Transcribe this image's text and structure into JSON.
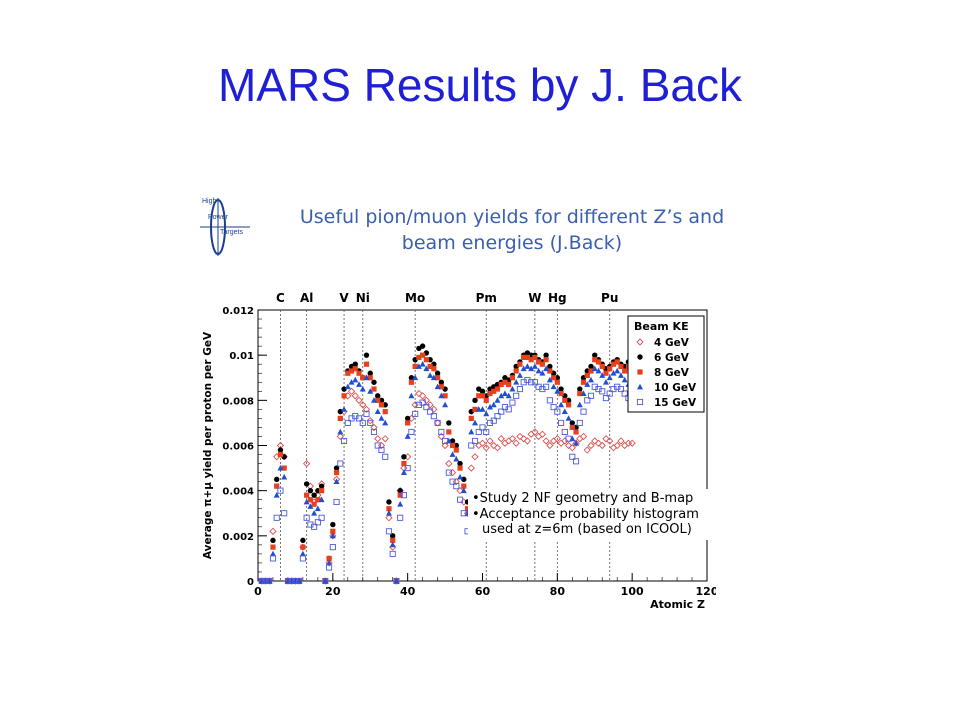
{
  "slide": {
    "title": "MARS Results by J. Back"
  },
  "logo": {
    "line1": "High",
    "line2": "Power",
    "line3": "Targets"
  },
  "chart_title_line1": "Useful pion/muon yields for different Z’s and",
  "chart_title_line2": "beam energies (J.Back)",
  "note": {
    "line1": "•Study 2 NF geometry and B-map",
    "line2": "•Acceptance probability histogram used at z=6m (based on ICOOL)"
  },
  "colors": {
    "title": "#1f1fd6",
    "s4": "#e05050",
    "s6": "#000000",
    "s8": "#e8401c",
    "s10": "#2050d0",
    "s15": "#4a5bd8"
  },
  "chart_data": {
    "type": "scatter",
    "xlabel": "Atomic Z",
    "ylabel": "Average π+μ yield per proton per GeV",
    "xlim": [
      0,
      120
    ],
    "ylim": [
      0,
      0.012
    ],
    "xticks": [
      "0",
      "20",
      "40",
      "60",
      "80",
      "100",
      "120"
    ],
    "yticks": [
      "0",
      "0.002",
      "0.004",
      "0.006",
      "0.008",
      "0.01",
      "0.012"
    ],
    "legend_title": "Beam KE",
    "legend_position": "top-right",
    "element_markers": [
      {
        "label": "C",
        "z": 6
      },
      {
        "label": "Al",
        "z": 13
      },
      {
        "label": "V",
        "z": 23
      },
      {
        "label": "Ni",
        "z": 28
      },
      {
        "label": "Mo",
        "z": 42
      },
      {
        "label": "Pm",
        "z": 61
      },
      {
        "label": "W",
        "z": 74
      },
      {
        "label": "Hg",
        "z": 80
      },
      {
        "label": "Pu",
        "z": 94
      }
    ],
    "x": [
      1,
      2,
      3,
      4,
      5,
      6,
      7,
      8,
      9,
      10,
      11,
      12,
      13,
      14,
      15,
      16,
      17,
      18,
      19,
      20,
      21,
      22,
      23,
      24,
      25,
      26,
      27,
      28,
      29,
      30,
      31,
      32,
      33,
      34,
      35,
      36,
      37,
      38,
      39,
      40,
      41,
      42,
      43,
      44,
      45,
      46,
      47,
      48,
      49,
      50,
      51,
      52,
      53,
      54,
      55,
      56,
      57,
      58,
      59,
      60,
      61,
      62,
      63,
      64,
      65,
      66,
      67,
      68,
      69,
      70,
      71,
      72,
      73,
      74,
      75,
      76,
      77,
      78,
      79,
      80,
      81,
      82,
      83,
      84,
      85,
      86,
      87,
      88,
      89,
      90,
      91,
      92,
      93,
      94,
      95,
      96,
      97,
      98,
      99,
      100
    ],
    "series": [
      {
        "name": "4 GeV",
        "marker": "open-diamond",
        "values": [
          0,
          0,
          0,
          0.0022,
          0.0055,
          0.006,
          0.0055,
          0,
          0,
          0,
          0,
          0.0015,
          0.0052,
          0.0042,
          0.0035,
          0.0038,
          0.0043,
          0,
          0.0008,
          0.002,
          0.0045,
          0.0064,
          0.0075,
          0.0082,
          0.0084,
          0.0082,
          0.008,
          0.0078,
          0.0076,
          0.0071,
          0.0068,
          0.0063,
          0.006,
          0.0063,
          0.0028,
          0.0015,
          0,
          0.004,
          0.005,
          0.0055,
          0.0072,
          0.0078,
          0.0083,
          0.0082,
          0.008,
          0.0078,
          0.0076,
          0.007,
          0.0064,
          0.006,
          0.0052,
          0.0048,
          0.0044,
          0.004,
          0.0035,
          0.003,
          0.005,
          0.0055,
          0.006,
          0.0061,
          0.0059,
          0.0062,
          0.006,
          0.0059,
          0.0063,
          0.0061,
          0.0062,
          0.0063,
          0.0061,
          0.0064,
          0.0063,
          0.0062,
          0.0065,
          0.0066,
          0.0064,
          0.0065,
          0.0062,
          0.006,
          0.0062,
          0.0063,
          0.0061,
          0.0062,
          0.006,
          0.0059,
          0.0061,
          0.0063,
          0.0064,
          0.0058,
          0.006,
          0.0062,
          0.0061,
          0.006,
          0.0063,
          0.0062,
          0.0059,
          0.006,
          0.0062,
          0.006,
          0.0061,
          0.0061
        ]
      },
      {
        "name": "6 GeV",
        "marker": "filled-circle",
        "values": [
          0,
          0,
          0,
          0.0018,
          0.0045,
          0.0058,
          0.0055,
          0,
          0,
          0,
          0,
          0.0018,
          0.0043,
          0.004,
          0.0038,
          0.004,
          0.0042,
          0,
          0.001,
          0.0025,
          0.005,
          0.0075,
          0.0085,
          0.0093,
          0.0095,
          0.0096,
          0.0093,
          0.009,
          0.01,
          0.0092,
          0.0088,
          0.0082,
          0.008,
          0.0078,
          0.0035,
          0.002,
          0,
          0.004,
          0.0055,
          0.0072,
          0.009,
          0.0098,
          0.0103,
          0.0104,
          0.0101,
          0.0098,
          0.0096,
          0.0092,
          0.0088,
          0.0085,
          0.007,
          0.0062,
          0.006,
          0.0052,
          0.0045,
          0.0035,
          0.0075,
          0.008,
          0.0085,
          0.0084,
          0.0082,
          0.0085,
          0.0086,
          0.0087,
          0.0088,
          0.009,
          0.0089,
          0.0091,
          0.0095,
          0.0097,
          0.01,
          0.0101,
          0.01,
          0.01,
          0.0098,
          0.0097,
          0.01,
          0.0095,
          0.0092,
          0.009,
          0.0085,
          0.0082,
          0.008,
          0.007,
          0.0068,
          0.0085,
          0.009,
          0.0093,
          0.0095,
          0.01,
          0.0098,
          0.0096,
          0.0094,
          0.0095,
          0.0097,
          0.0098,
          0.0096,
          0.0095,
          0.0097,
          0.0097
        ]
      },
      {
        "name": "8 GeV",
        "marker": "filled-square",
        "values": [
          0,
          0,
          0,
          0.0015,
          0.0042,
          0.0056,
          0.005,
          0,
          0,
          0,
          0,
          0.0015,
          0.0038,
          0.0036,
          0.0034,
          0.0036,
          0.004,
          0,
          0.001,
          0.0022,
          0.0048,
          0.0072,
          0.0082,
          0.0092,
          0.0093,
          0.0094,
          0.0092,
          0.009,
          0.0096,
          0.009,
          0.0085,
          0.008,
          0.0078,
          0.0075,
          0.0032,
          0.0018,
          0,
          0.0038,
          0.0052,
          0.007,
          0.0088,
          0.0095,
          0.0099,
          0.01,
          0.0098,
          0.0095,
          0.0094,
          0.009,
          0.0086,
          0.0082,
          0.0066,
          0.006,
          0.0058,
          0.005,
          0.0042,
          0.0032,
          0.0072,
          0.0076,
          0.0082,
          0.0082,
          0.008,
          0.0083,
          0.0084,
          0.0085,
          0.0087,
          0.0088,
          0.0087,
          0.009,
          0.0093,
          0.0096,
          0.0099,
          0.0099,
          0.0098,
          0.0099,
          0.0097,
          0.0096,
          0.0098,
          0.0093,
          0.009,
          0.0088,
          0.0083,
          0.008,
          0.0078,
          0.0068,
          0.0066,
          0.0083,
          0.0088,
          0.0091,
          0.0093,
          0.0098,
          0.0097,
          0.0095,
          0.0092,
          0.0094,
          0.0096,
          0.0097,
          0.0095,
          0.0093,
          0.0095,
          0.0095
        ]
      },
      {
        "name": "10 GeV",
        "marker": "filled-triangle",
        "values": [
          0,
          0,
          0,
          0.0012,
          0.0038,
          0.005,
          0.0046,
          0,
          0,
          0,
          0,
          0.0012,
          0.0035,
          0.0033,
          0.003,
          0.0032,
          0.0036,
          0,
          0.0008,
          0.002,
          0.0044,
          0.0066,
          0.0076,
          0.0086,
          0.0088,
          0.0089,
          0.0087,
          0.0085,
          0.009,
          0.0084,
          0.008,
          0.0075,
          0.0072,
          0.007,
          0.003,
          0.0016,
          0,
          0.0034,
          0.0048,
          0.0064,
          0.0082,
          0.009,
          0.0095,
          0.0096,
          0.0094,
          0.0091,
          0.009,
          0.0086,
          0.0082,
          0.0078,
          0.0062,
          0.0056,
          0.0054,
          0.0046,
          0.004,
          0.003,
          0.0066,
          0.007,
          0.0076,
          0.0076,
          0.0074,
          0.0077,
          0.0078,
          0.008,
          0.0082,
          0.0083,
          0.0082,
          0.0085,
          0.0088,
          0.0091,
          0.0094,
          0.0095,
          0.0094,
          0.0095,
          0.0093,
          0.0092,
          0.0094,
          0.0089,
          0.0086,
          0.0084,
          0.0078,
          0.0075,
          0.0072,
          0.0063,
          0.0061,
          0.0078,
          0.0083,
          0.0087,
          0.0089,
          0.0094,
          0.0093,
          0.0091,
          0.0088,
          0.009,
          0.0092,
          0.0093,
          0.0091,
          0.0089,
          0.0087,
          0.0086
        ]
      },
      {
        "name": "15 GeV",
        "marker": "open-square",
        "values": [
          0,
          0,
          0,
          0.001,
          0.0028,
          0.004,
          0.003,
          0,
          0,
          0,
          0,
          0.001,
          0.0028,
          0.0025,
          0.0024,
          0.0026,
          0.0028,
          0,
          0.0006,
          0.0015,
          0.0035,
          0.0052,
          0.0062,
          0.007,
          0.0072,
          0.0073,
          0.0072,
          0.007,
          0.0074,
          0.007,
          0.0066,
          0.006,
          0.0058,
          0.0055,
          0.0022,
          0.0012,
          0,
          0.0028,
          0.0038,
          0.005,
          0.0066,
          0.0074,
          0.0078,
          0.0079,
          0.0077,
          0.0075,
          0.0073,
          0.007,
          0.0066,
          0.0062,
          0.0048,
          0.0044,
          0.0042,
          0.0036,
          0.003,
          0.0022,
          0.006,
          0.0062,
          0.0066,
          0.0068,
          0.0066,
          0.007,
          0.0071,
          0.0073,
          0.0075,
          0.0077,
          0.0076,
          0.0079,
          0.0082,
          0.0085,
          0.0088,
          0.0089,
          0.0088,
          0.0088,
          0.0086,
          0.0085,
          0.0086,
          0.008,
          0.0077,
          0.0075,
          0.007,
          0.0066,
          0.0063,
          0.0055,
          0.0053,
          0.007,
          0.0075,
          0.008,
          0.0082,
          0.0086,
          0.0085,
          0.0084,
          0.0081,
          0.0083,
          0.0085,
          0.0086,
          0.0085,
          0.0083,
          0.0081,
          0.008
        ]
      }
    ]
  }
}
